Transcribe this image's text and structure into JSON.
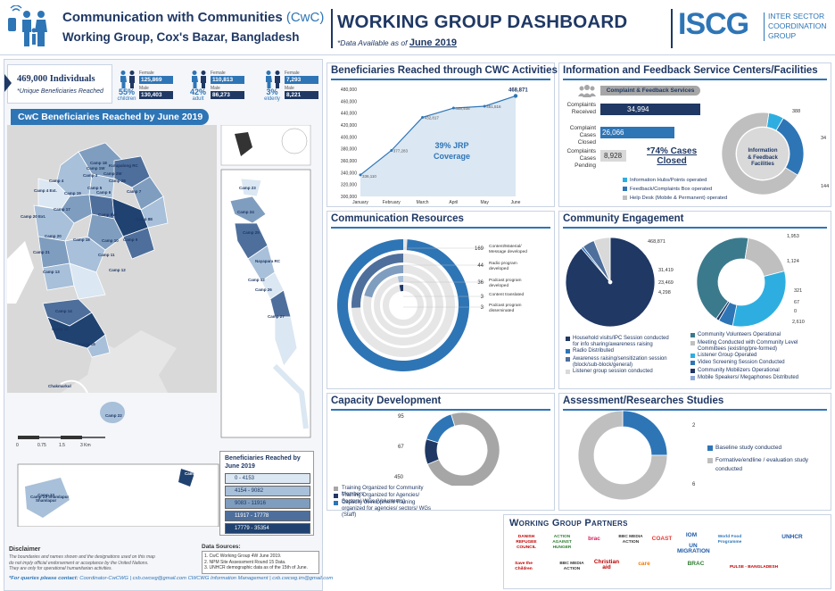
{
  "header": {
    "org_line1": "Communication with Communities",
    "org_abbr": "(CwC)",
    "org_line2": "Working Group, Cox's Bazar, Bangladesh",
    "title": "WORKING GROUP DASHBOARD",
    "data_note_prefix": "*Data Available as of",
    "data_note_date": "June 2019",
    "iscg_logo": "ISCG",
    "iscg_l1": "Inter Sector",
    "iscg_l2": "Coordination",
    "iscg_l3": "Group"
  },
  "summary": {
    "total": "469,000 Individuals",
    "total_note": "*Unique Beneficiaries Reached",
    "groups": [
      {
        "pct": "55%",
        "label": "children",
        "female_label": "Female",
        "female": "125,869",
        "male_label": "Male",
        "male": "130,403"
      },
      {
        "pct": "42%",
        "label": "adult",
        "female_label": "Female",
        "female": "110,813",
        "male_label": "Male",
        "male": "86,273"
      },
      {
        "pct": "3%",
        "label": "elderly",
        "female_label": "Female",
        "female": "7,293",
        "male_label": "Male",
        "male": "8,221"
      }
    ]
  },
  "map": {
    "title": "CwC Beneficiaries Reached by June 2019",
    "camps_left": [
      "Camp 1E",
      "Camp 1W",
      "Camp 2W",
      "Camp 2E",
      "Kutupalong RC",
      "Camp 3",
      "Camp 4",
      "Camp 4 Ext.",
      "Camp 5",
      "Camp 6",
      "Camp 7",
      "Camp 8E",
      "Camp 8W",
      "Camp 9",
      "Camp 10",
      "Camp 11",
      "Camp 12",
      "Camp 13",
      "Camp 14",
      "Camp 15",
      "Camp 16",
      "Camp 17",
      "Camp 18",
      "Camp 19",
      "Camp 20",
      "Camp 20 Ext.",
      "Camp 21",
      "Chakmarkul",
      "Camp 22",
      "Camp 23 Shamlapur"
    ],
    "camps_right": [
      "Camp 23",
      "Camp 24",
      "Camp 25",
      "Camp 26",
      "Camp 27",
      "Nayapara RC",
      "Camp 12"
    ],
    "scale": [
      "0",
      "0.75",
      "1.5",
      "3 Km"
    ],
    "legend_title": "Beneficiaries Reached by June 2019",
    "legend": [
      {
        "label": "0 - 4153",
        "color": "#dbe7f2"
      },
      {
        "label": "4154 - 9082",
        "color": "#a8c0d9"
      },
      {
        "label": "9083 - 11916",
        "color": "#7f9dbf"
      },
      {
        "label": "11917 - 17778",
        "color": "#4e6f9c"
      },
      {
        "label": "17779 - 35354",
        "color": "#1f4271"
      }
    ],
    "inset_camps": [
      "Camp 23",
      "Shamlapur"
    ],
    "inset_camp2": "Camp 22"
  },
  "disclaimer": {
    "title": "Disclaimer",
    "lines": [
      "The boundaries and names shown and the designations used on this map",
      "do not imply official endorsement or acceptance by the United Nations.",
      "They are only for operational humanitarian activities."
    ],
    "sources_title": "Data Sources:",
    "sources": [
      "1. CwC Working Group 4W June 2019.",
      "2. NPM Site Assessment Round 15 Data.",
      "3. UNHCR demographic data as of the 15th of June."
    ],
    "contact_label": "*For queries please contact:",
    "contact_text": "Coordinator-CwCWG | cxb.cwcwg@gmail.com   CWCWG Information Management | cxb.cwcwg.im@gmail.com"
  },
  "reach": {
    "title": "Beneficiaries Reached through CWC Activities",
    "jrp_line1": "39% JRP",
    "jrp_line2": "Coverage"
  },
  "info_feedback": {
    "title": "Information and Feedback Service Centers/Facilities",
    "ck_services": "Complaint & Feedback Services",
    "bars": [
      {
        "label1": "Complaints",
        "label2": "Received",
        "value": "34,994",
        "num": 34994,
        "color": "#1f3864"
      },
      {
        "label1": "Complaint",
        "label2": "Cases Closed",
        "value": "26,066",
        "num": 26066,
        "color": "#2e75b6"
      },
      {
        "label1": "Complaints",
        "label2": "Cases Pending",
        "value": "8,928",
        "num": 8928,
        "color": "#d9d9d9"
      }
    ],
    "closed_pct_l1": "*74% Cases",
    "closed_pct_l2": "Closed",
    "legend": [
      {
        "label": "Information Hubs/Points operated",
        "color": "#2eaee0"
      },
      {
        "label": "Feedback/Complaints Box operated",
        "color": "#2e75b6"
      },
      {
        "label": "Help Desk (Mobile & Permanent) operated",
        "color": "#bfbfbf"
      }
    ],
    "center_l1": "Information",
    "center_l2": "& Feedback",
    "center_l3": "Facilities"
  },
  "comm_resources": {
    "title": "Communication Resources",
    "labels": [
      {
        "value": "169",
        "text1": "Content/Material/",
        "text2": "Message developed"
      },
      {
        "value": "44",
        "text1": "Radio program",
        "text2": "developed"
      },
      {
        "value": "36",
        "text1": "Podcast program",
        "text2": "developed"
      },
      {
        "value": "3",
        "text1": "Content translated",
        "text2": ""
      },
      {
        "value": "3",
        "text1": "Podcast program",
        "text2": "disseminated"
      }
    ]
  },
  "community": {
    "title": "Community Engagement",
    "left_labels": [
      "468,871",
      "31,419",
      "23,469",
      "4,298"
    ],
    "right_labels": [
      "1,953",
      "1,124",
      "321",
      "67",
      "0",
      "2,610"
    ],
    "left_legend": [
      {
        "label": "Household visits/IPC Session conducted for info sharing/awareness raising",
        "color": "#1f3864"
      },
      {
        "label": "Radio Distributed",
        "color": "#2e75b6"
      },
      {
        "label": "Awareness raising/sensitization session (block/sub-block/general)",
        "color": "#4e6f9c"
      },
      {
        "label": "Listener group session conducted",
        "color": "#d9d9d9"
      }
    ],
    "right_legend": [
      {
        "label": "Community Volunteers Operational",
        "color": "#3b7a8c"
      },
      {
        "label": "Meeting Conducted with Community Level Committees (existing/pre-formed)",
        "color": "#bfbfbf"
      },
      {
        "label": "Listener Group Operated",
        "color": "#2eaee0"
      },
      {
        "label": "Video Screening Session Conducted",
        "color": "#2e75b6"
      },
      {
        "label": "Community Mobilizers Operational",
        "color": "#1f3864"
      },
      {
        "label": "Mobile Speakers/ Megaphones Distributed",
        "color": "#8ea9db"
      }
    ]
  },
  "capacity": {
    "title": "Capacity Development",
    "labels": [
      "95",
      "67",
      "450"
    ],
    "legend": [
      {
        "label": "Training Organized for Community Members",
        "color": "#a6a6a6"
      },
      {
        "label": "Training Organized for Agencies/ Sectors/ WGs (Volunteers)",
        "color": "#1f3864"
      },
      {
        "label": "Capacity development Training organized for agencies/ sectors/ WGs (Staff)",
        "color": "#2e75b6"
      }
    ]
  },
  "assessment": {
    "title": "Assessment/Researches Studies",
    "labels": [
      "2",
      "6"
    ],
    "legend": [
      {
        "label": "Baseline study conducted",
        "color": "#2e75b6"
      },
      {
        "label": "Formative/endline / evaluation study conducted",
        "color": "#bfbfbf"
      }
    ]
  },
  "partners": {
    "title": "Working Group Partners",
    "logos": [
      "DANISH REFUGEE COUNCIL",
      "ACTION AGAINST HUNGER",
      "brac",
      "BBC MEDIA ACTION",
      "COAST",
      "IOM",
      "UN MIGRATION",
      "World Food Programme",
      "UNHCR",
      "Save the Children",
      "BBC MEDIA ACTION",
      "Christian aid",
      "care",
      "BRAC",
      "PULSE - BANGLADESH"
    ]
  },
  "chart_data": [
    {
      "type": "line",
      "categories": [
        "January",
        "February",
        "March",
        "April",
        "May",
        "June"
      ],
      "values": [
        336110,
        377283,
        432817,
        448408,
        451516,
        468871
      ],
      "data_labels": [
        "336,110",
        "377,283",
        "432,817",
        "448,408",
        "451,516",
        "468,871"
      ],
      "ylim": [
        300000,
        480000
      ],
      "yticks": [
        "300,000",
        "320,000",
        "340,000",
        "360,000",
        "380,000",
        "400,000",
        "420,000",
        "440,000",
        "460,000",
        "480,000"
      ],
      "title": "Beneficiaries Reached through CWC Activities"
    },
    {
      "type": "bar",
      "title": "Complaint & Feedback Services",
      "categories": [
        "Complaints Received",
        "Complaint Cases Closed",
        "Complaints Cases Pending"
      ],
      "values": [
        34994,
        26066,
        8928
      ]
    },
    {
      "type": "pie",
      "title": "Information and Feedback Service Centers/Facilities",
      "categories": [
        "Information Hubs/Points operated",
        "Feedback/Complaints Box operated",
        "Help Desk (Mobile & Permanent) operated"
      ],
      "values": [
        34,
        144,
        388
      ]
    },
    {
      "type": "pie",
      "title": "Communication Resources",
      "categories": [
        "Content/Material/Message developed",
        "Radio program developed",
        "Podcast program developed",
        "Content translated",
        "Podcast program disseminated"
      ],
      "values": [
        169,
        44,
        36,
        3,
        3
      ]
    },
    {
      "type": "pie",
      "title": "Community Engagement",
      "categories": [
        "Household visits/IPC Session conducted",
        "Radio Distributed",
        "Awareness raising/sensitization session",
        "Listener group session conducted"
      ],
      "values": [
        468871,
        4298,
        23469,
        31419
      ]
    },
    {
      "type": "pie",
      "title": "Community Engagement",
      "categories": [
        "Community Volunteers Operational",
        "Meeting Conducted with Community Level Committees",
        "Listener Group Operated",
        "Video Screening Session Conducted",
        "Community Mobilizers Operational",
        "Mobile Speakers/ Megaphones Distributed"
      ],
      "values": [
        2610,
        1124,
        1953,
        321,
        67,
        0
      ]
    },
    {
      "type": "pie",
      "title": "Capacity Development",
      "categories": [
        "Training Organized for Community Members",
        "Training Organized for Agencies/ Sectors/ WGs (Volunteers)",
        "Capacity development Training organized for agencies/ sectors/ WGs (Staff)"
      ],
      "values": [
        450,
        67,
        95
      ]
    },
    {
      "type": "pie",
      "title": "Assessment/Researches Studies",
      "categories": [
        "Baseline study conducted",
        "Formative/endline / evaluation study conducted"
      ],
      "values": [
        2,
        6
      ]
    }
  ]
}
